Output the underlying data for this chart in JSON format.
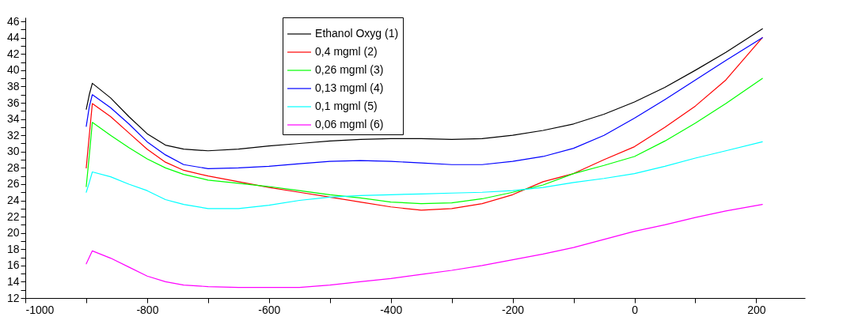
{
  "chart_data": {
    "type": "line",
    "x": [
      -900,
      -895,
      -890,
      -860,
      -830,
      -800,
      -770,
      -740,
      -700,
      -650,
      -600,
      -550,
      -500,
      -450,
      -400,
      -350,
      -300,
      -250,
      -200,
      -150,
      -100,
      -50,
      0,
      50,
      100,
      150,
      210
    ],
    "series": [
      {
        "name": "Ethanol Oxyg (1)",
        "color": "#000000",
        "values": [
          35.2,
          37,
          38.4,
          36.6,
          34.3,
          32.2,
          30.8,
          30.3,
          30.1,
          30.3,
          30.7,
          31.0,
          31.3,
          31.5,
          31.6,
          31.6,
          31.5,
          31.6,
          32.0,
          32.6,
          33.4,
          34.6,
          36.1,
          37.9,
          40.0,
          42.2,
          45.1
        ]
      },
      {
        "name": "0,4 mgml (2)",
        "color": "#ff0000",
        "values": [
          28,
          32,
          35.9,
          34.3,
          32.3,
          30.3,
          28.7,
          27.7,
          27.0,
          26.3,
          25.6,
          25.0,
          24.4,
          23.8,
          23.2,
          22.8,
          23.0,
          23.6,
          24.7,
          26.3,
          27.3,
          29.0,
          30.6,
          33.0,
          35.6,
          38.8,
          44.0
        ]
      },
      {
        "name": "0,26 mgml (3)",
        "color": "#00ff00",
        "values": [
          25.7,
          29.5,
          33.6,
          32.0,
          30.5,
          29.1,
          28.0,
          27.2,
          26.5,
          26.1,
          25.7,
          25.2,
          24.7,
          24.3,
          23.8,
          23.6,
          23.7,
          24.2,
          25.0,
          25.9,
          27.3,
          28.3,
          29.4,
          31.3,
          33.5,
          35.9,
          39.0
        ]
      },
      {
        "name": "0,13 mgml (4)",
        "color": "#0000ff",
        "values": [
          33.1,
          35.5,
          37.0,
          35.4,
          33.4,
          31.2,
          29.6,
          28.4,
          27.9,
          28.0,
          28.2,
          28.5,
          28.8,
          28.9,
          28.8,
          28.6,
          28.4,
          28.4,
          28.8,
          29.4,
          30.4,
          32.0,
          34.1,
          36.4,
          38.8,
          41.2,
          44.0
        ]
      },
      {
        "name": "0,1 mgml (5)",
        "color": "#00ffff",
        "values": [
          25.0,
          26.2,
          27.5,
          26.9,
          26.0,
          25.2,
          24.1,
          23.5,
          23.0,
          23.0,
          23.4,
          24.0,
          24.4,
          24.6,
          24.7,
          24.8,
          24.9,
          25.0,
          25.2,
          25.6,
          26.2,
          26.7,
          27.3,
          28.2,
          29.2,
          30.1,
          31.2
        ]
      },
      {
        "name": "0,06 mgml (6)",
        "color": "#ff00ff",
        "values": [
          16.2,
          17.0,
          17.8,
          16.9,
          15.8,
          14.7,
          14.0,
          13.6,
          13.4,
          13.3,
          13.3,
          13.3,
          13.6,
          14.0,
          14.4,
          14.9,
          15.4,
          16.0,
          16.7,
          17.4,
          18.2,
          19.2,
          20.2,
          21.0,
          21.9,
          22.7,
          23.5
        ]
      }
    ],
    "xlim": [
      -1000,
      280
    ],
    "ylim": [
      12,
      46.5
    ],
    "xticks": [
      -1000,
      {
        "value": -900,
        "label": null
      },
      -800,
      {
        "value": -700,
        "label": null
      },
      -600,
      {
        "value": -500,
        "label": null
      },
      -400,
      {
        "value": -300,
        "label": null
      },
      -200,
      {
        "value": -100,
        "label": null
      },
      0,
      {
        "value": 100,
        "label": null
      },
      200
    ],
    "yticks": [
      12,
      {
        "value": 13,
        "label": null
      },
      14,
      {
        "value": 15,
        "label": null
      },
      16,
      {
        "value": 17,
        "label": null
      },
      18,
      {
        "value": 19,
        "label": null
      },
      20,
      {
        "value": 21,
        "label": null
      },
      22,
      {
        "value": 23,
        "label": null
      },
      24,
      {
        "value": 25,
        "label": null
      },
      26,
      {
        "value": 27,
        "label": null
      },
      28,
      {
        "value": 29,
        "label": null
      },
      30,
      {
        "value": 31,
        "label": null
      },
      32,
      {
        "value": 33,
        "label": null
      },
      34,
      {
        "value": 35,
        "label": null
      },
      36,
      {
        "value": 37,
        "label": null
      },
      38,
      {
        "value": 39,
        "label": null
      },
      40,
      {
        "value": 41,
        "label": null
      },
      42,
      {
        "value": 43,
        "label": null
      },
      44,
      {
        "value": 45,
        "label": null
      },
      46
    ],
    "grid": false,
    "legend": "top",
    "marker": "none",
    "line_style": "solid"
  }
}
